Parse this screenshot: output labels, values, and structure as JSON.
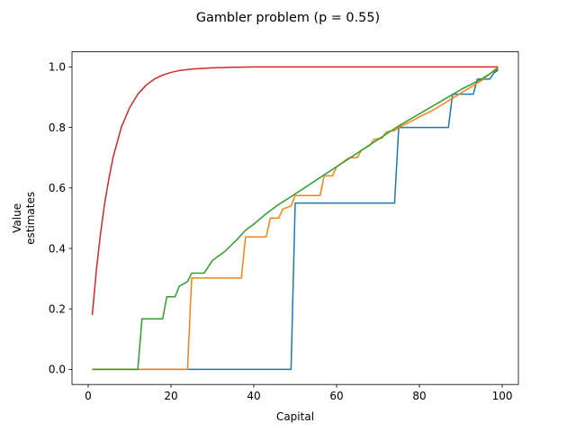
{
  "chart_data": {
    "type": "line",
    "title": "Gambler problem (p = 0.55)",
    "xlabel": "Capital",
    "ylabel": [
      "Value",
      "estimates"
    ],
    "xlim": [
      -3.9,
      103.9
    ],
    "ylim": [
      -0.05,
      1.05
    ],
    "xticks": [
      0,
      20,
      40,
      60,
      80,
      100
    ],
    "yticks": [
      0.0,
      0.2,
      0.4,
      0.6,
      0.8,
      1.0
    ],
    "xtick_labels": [
      "0",
      "20",
      "40",
      "60",
      "80",
      "100"
    ],
    "ytick_labels": [
      "0.0",
      "0.2",
      "0.4",
      "0.6",
      "0.8",
      "1.0"
    ],
    "grid": false,
    "legend": "none",
    "series": [
      {
        "color": "#1f77b4",
        "x": [
          1,
          49,
          50,
          74,
          75,
          87,
          88,
          93,
          94,
          97,
          98,
          99
        ],
        "y": [
          0.0,
          0.0,
          0.55,
          0.55,
          0.8,
          0.8,
          0.91,
          0.91,
          0.96,
          0.96,
          0.98,
          0.99
        ]
      },
      {
        "color": "#ff7f0e",
        "x": [
          1,
          24,
          25,
          37,
          38,
          43,
          44,
          46,
          47,
          49,
          50,
          56,
          57,
          59,
          60,
          62,
          63,
          65,
          66,
          68,
          69,
          71,
          72,
          74,
          75,
          78,
          80,
          83,
          86,
          89,
          92,
          95,
          99
        ],
        "y": [
          0.0,
          0.0,
          0.302,
          0.302,
          0.438,
          0.438,
          0.5,
          0.5,
          0.53,
          0.54,
          0.575,
          0.575,
          0.64,
          0.64,
          0.67,
          0.69,
          0.7,
          0.7,
          0.725,
          0.74,
          0.76,
          0.765,
          0.785,
          0.79,
          0.8,
          0.82,
          0.835,
          0.855,
          0.88,
          0.905,
          0.93,
          0.955,
          1.0
        ]
      },
      {
        "color": "#2ca02c",
        "x": [
          1,
          12,
          13,
          18,
          19,
          21,
          22,
          24,
          25,
          28,
          30,
          33,
          36,
          38,
          40,
          43,
          46,
          50,
          55,
          60,
          65,
          70,
          75,
          80,
          85,
          90,
          95,
          99
        ],
        "y": [
          0.0,
          0.0,
          0.167,
          0.167,
          0.24,
          0.24,
          0.275,
          0.29,
          0.318,
          0.318,
          0.36,
          0.39,
          0.43,
          0.46,
          0.48,
          0.515,
          0.545,
          0.58,
          0.625,
          0.67,
          0.715,
          0.76,
          0.805,
          0.845,
          0.885,
          0.925,
          0.96,
          0.995
        ]
      },
      {
        "color": "#d62728",
        "x": [
          1,
          2,
          3,
          4,
          5,
          6,
          7,
          8,
          10,
          12,
          14,
          16,
          18,
          20,
          22,
          25,
          30,
          35,
          40,
          50,
          60,
          70,
          80,
          90,
          99
        ],
        "y": [
          0.18,
          0.33,
          0.45,
          0.55,
          0.63,
          0.7,
          0.75,
          0.8,
          0.865,
          0.91,
          0.94,
          0.96,
          0.973,
          0.982,
          0.988,
          0.993,
          0.997,
          0.999,
          1.0,
          1.0,
          1.0,
          1.0,
          1.0,
          1.0,
          1.0
        ]
      }
    ]
  }
}
